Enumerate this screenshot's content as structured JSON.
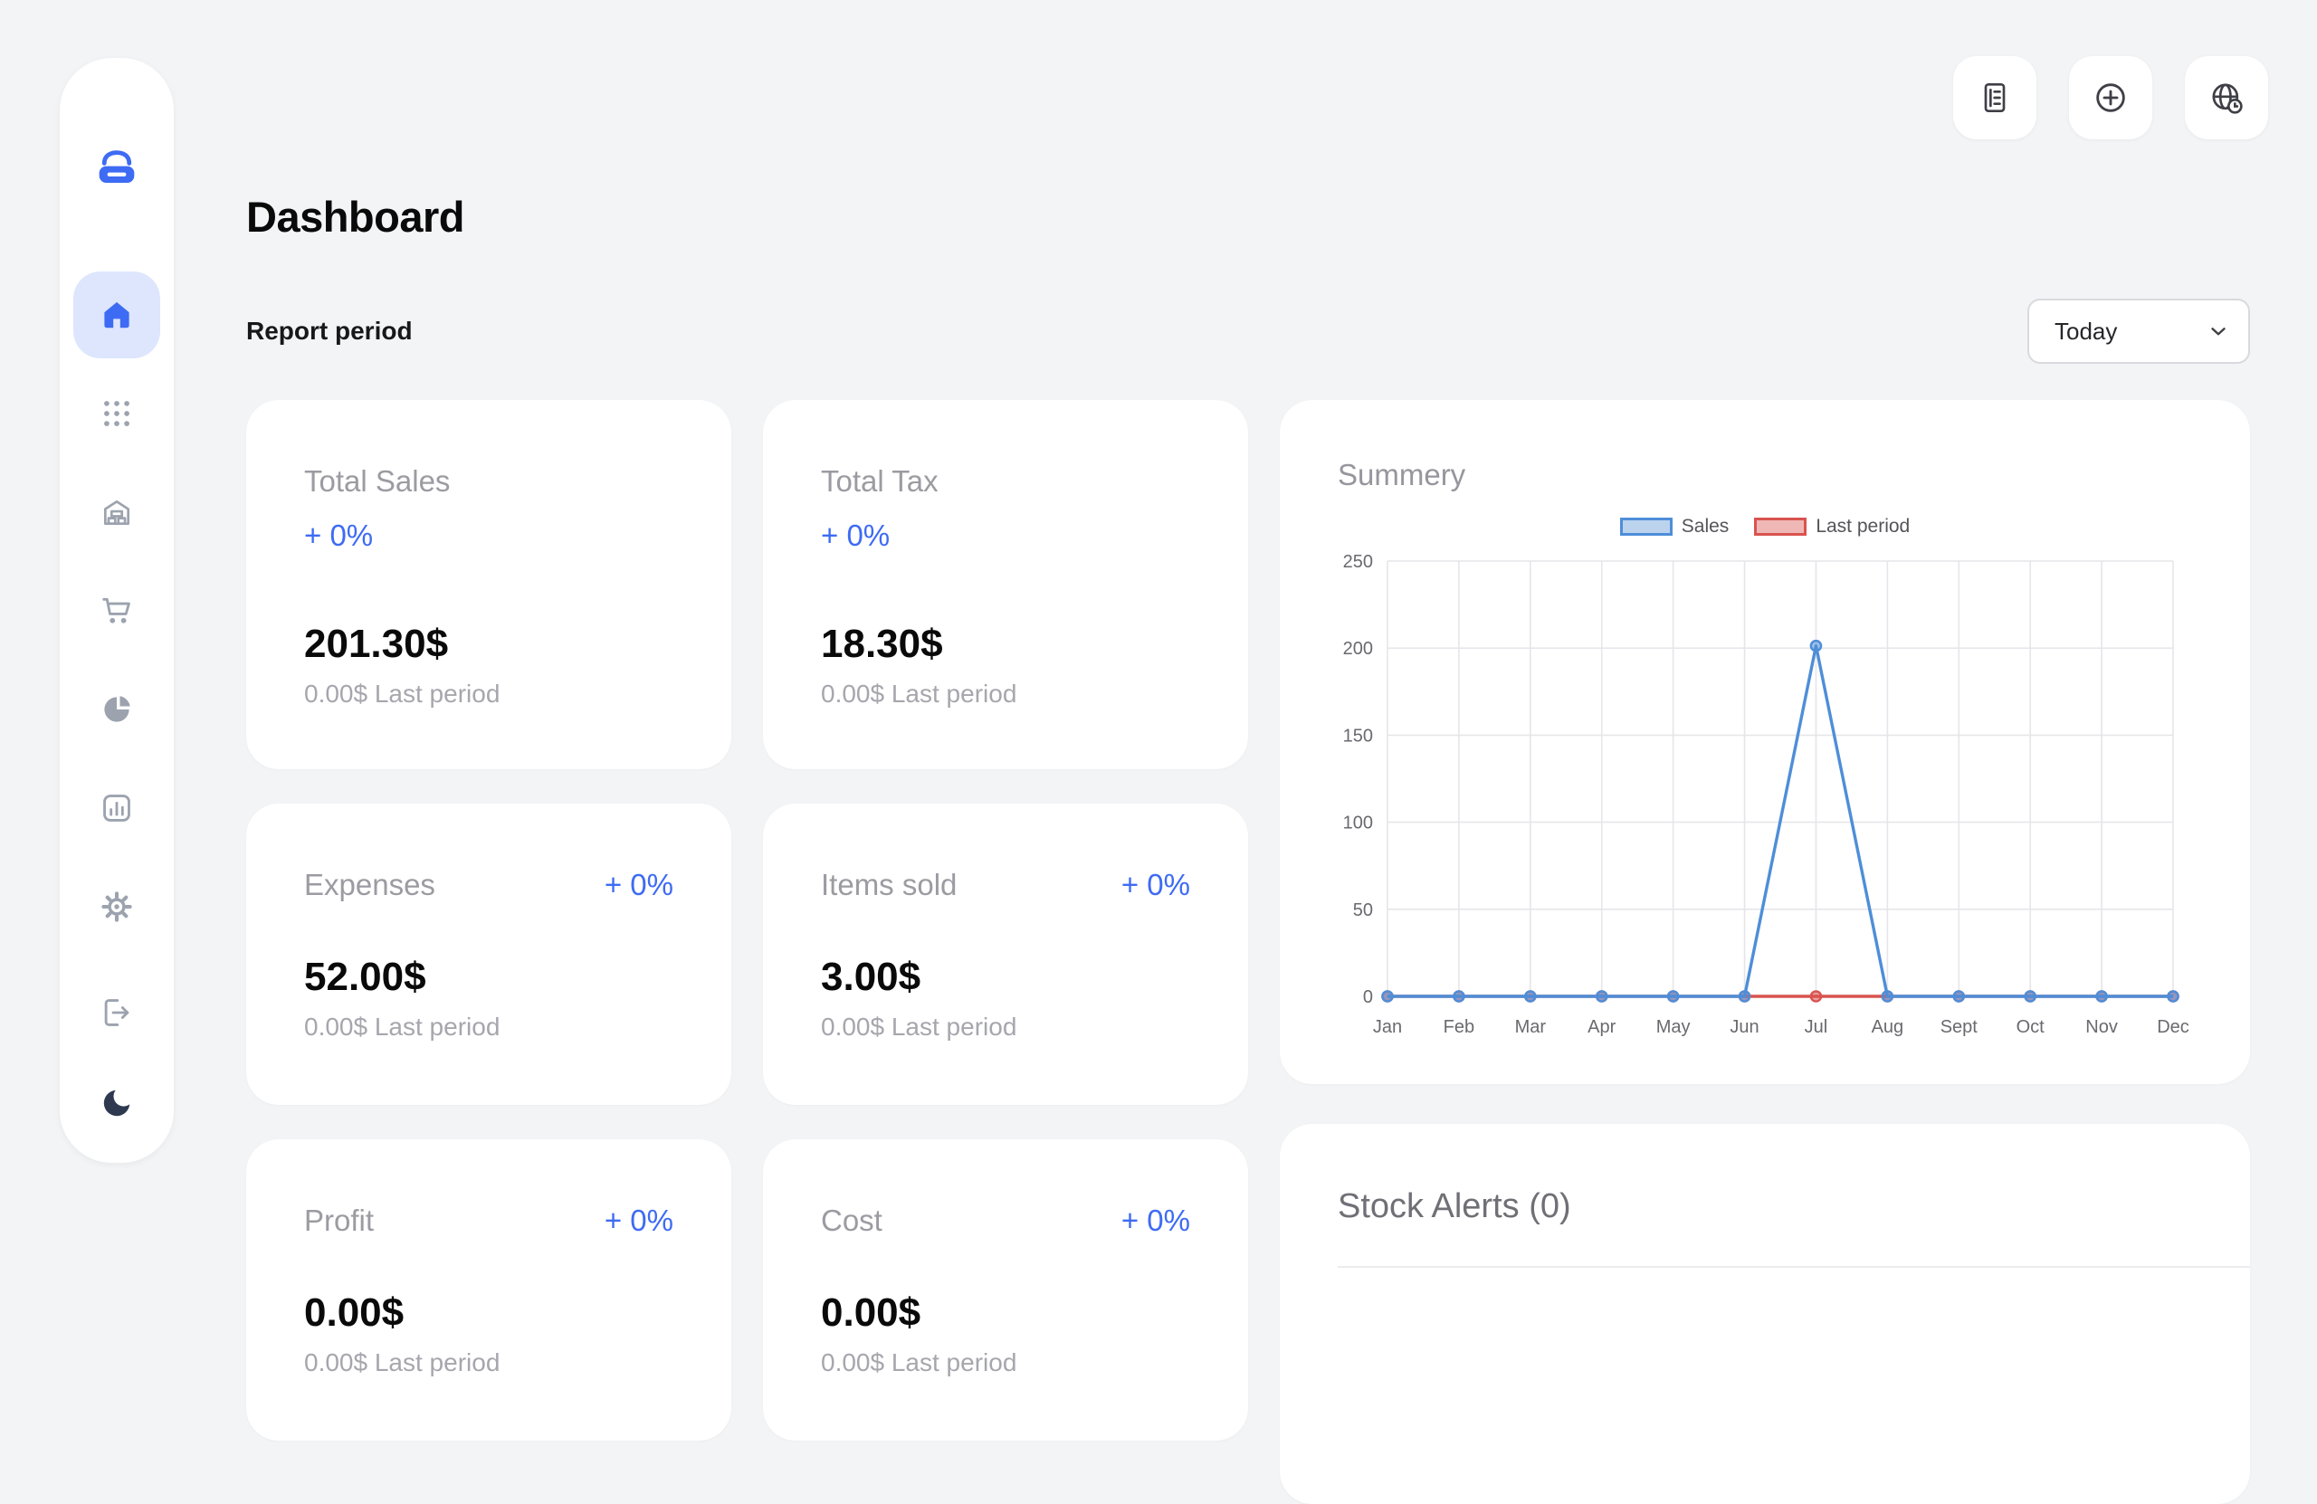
{
  "page": {
    "title": "Dashboard"
  },
  "report_period": {
    "label": "Report period",
    "selected": "Today"
  },
  "topbar": {
    "buttons": [
      {
        "name": "reports-button",
        "icon": "document-icon"
      },
      {
        "name": "add-button",
        "icon": "plus-circle-icon"
      },
      {
        "name": "language-button",
        "icon": "globe-clock-icon"
      }
    ]
  },
  "sidebar": {
    "items": [
      {
        "icon": "home-icon",
        "active": true
      },
      {
        "icon": "apps-grid-icon",
        "active": false
      },
      {
        "icon": "store-icon",
        "active": false
      },
      {
        "icon": "cart-icon",
        "active": false
      },
      {
        "icon": "pie-chart-icon",
        "active": false
      },
      {
        "icon": "analytics-icon",
        "active": false
      },
      {
        "icon": "settings-icon",
        "active": false
      }
    ],
    "footer_items": [
      {
        "icon": "logout-icon"
      },
      {
        "icon": "dark-mode-icon"
      }
    ]
  },
  "stat_cards": [
    {
      "title": "Total Sales",
      "delta": "+ 0%",
      "value": "201.30$",
      "subtitle": "0.00$ Last period"
    },
    {
      "title": "Total Tax",
      "delta": "+ 0%",
      "value": "18.30$",
      "subtitle": "0.00$ Last period"
    },
    {
      "title": "Expenses",
      "delta": "+ 0%",
      "value": "52.00$",
      "subtitle": "0.00$ Last period"
    },
    {
      "title": "Items sold",
      "delta": "+ 0%",
      "value": "3.00$",
      "subtitle": "0.00$ Last period"
    },
    {
      "title": "Profit",
      "delta": "+ 0%",
      "value": "0.00$",
      "subtitle": "0.00$ Last period"
    },
    {
      "title": "Cost",
      "delta": "+ 0%",
      "value": "0.00$",
      "subtitle": "0.00$ Last period"
    }
  ],
  "summary": {
    "title": "Summery"
  },
  "stock_alerts": {
    "title": "Stock Alerts (0)"
  },
  "colors": {
    "accent": "#3e6bf4",
    "sales_line": "#4e8ed8",
    "last_period_line": "#d9534f",
    "background": "#f3f4f6"
  },
  "chart_data": {
    "type": "line",
    "title": "Summery",
    "categories": [
      "Jan",
      "Feb",
      "Mar",
      "Apr",
      "May",
      "Jun",
      "Jul",
      "Aug",
      "Sept",
      "Oct",
      "Nov",
      "Dec"
    ],
    "series": [
      {
        "name": "Sales",
        "values": [
          0,
          0,
          0,
          0,
          0,
          0,
          201.3,
          0,
          0,
          0,
          0,
          0
        ],
        "color": "#4e8ed8",
        "legend_fill": "#bcd3ee"
      },
      {
        "name": "Last period",
        "values": [
          0,
          0,
          0,
          0,
          0,
          0,
          0,
          0,
          0,
          0,
          0,
          0
        ],
        "color": "#d9534f",
        "legend_fill": "#efb8b6"
      }
    ],
    "ylim": [
      0,
      250
    ],
    "ytick": 50,
    "grid": true,
    "legend_position": "top",
    "xlabel": "",
    "ylabel": ""
  }
}
